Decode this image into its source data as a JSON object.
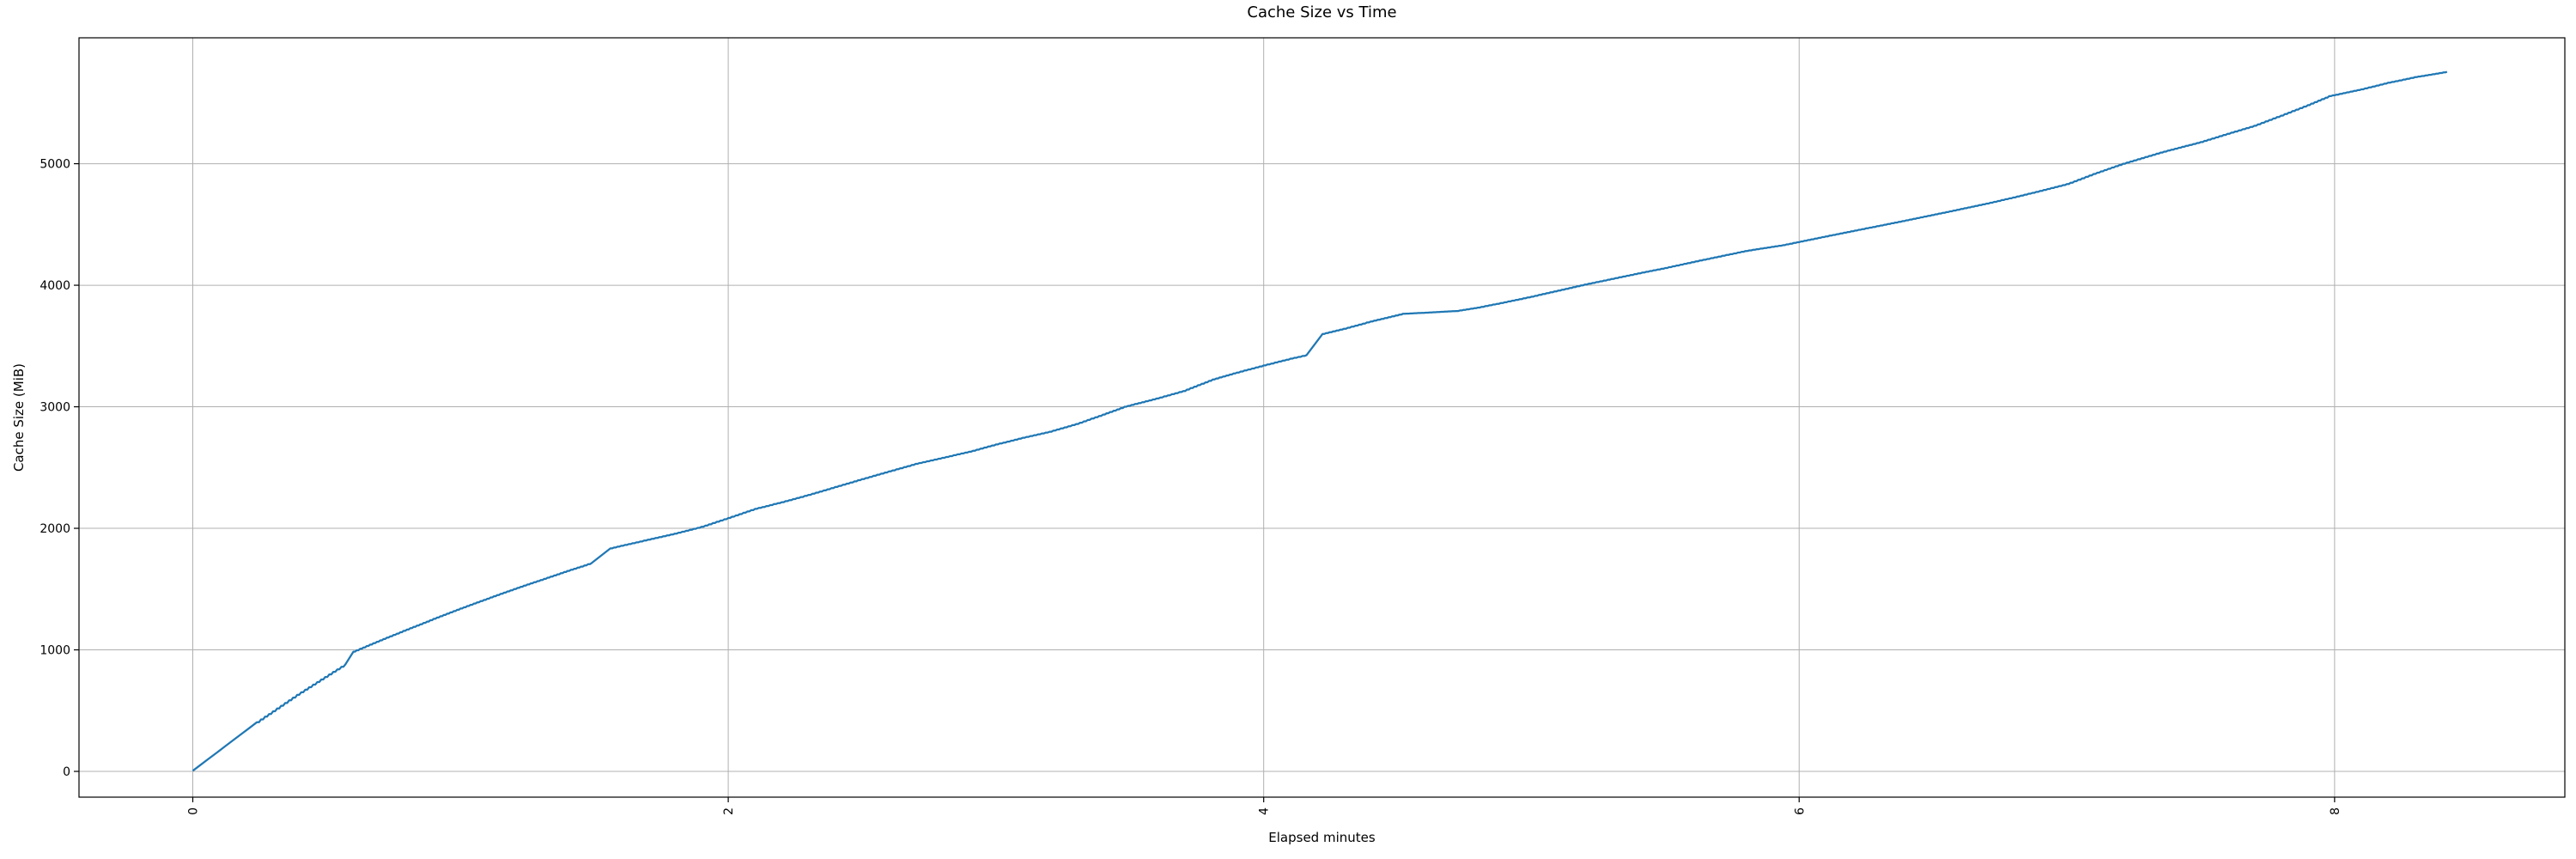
{
  "chart_data": {
    "type": "line",
    "title": "Cache Size vs Time",
    "xlabel": "Elapsed minutes",
    "ylabel": "Cache Size (MiB)",
    "xlim": [
      -0.425,
      8.86
    ],
    "ylim": [
      -212,
      6036
    ],
    "xticks": [
      0,
      2,
      4,
      6,
      8
    ],
    "xtick_labels": [
      "0",
      "2",
      "4",
      "6",
      "8"
    ],
    "xtick_rotation_deg": 90,
    "yticks": [
      0,
      1000,
      2000,
      3000,
      4000,
      5000
    ],
    "ytick_labels": [
      "0",
      "1000",
      "2000",
      "3000",
      "4000",
      "5000"
    ],
    "grid": true,
    "legend_position": "none",
    "line_color": "#1f77b4",
    "grid_color": "#b0b0b0",
    "spine_color": "#000000",
    "x_units": "minutes",
    "y_units": "MiB",
    "series": [
      {
        "name": "cache_size",
        "points": [
          [
            0.0,
            5
          ],
          [
            0.03,
            55
          ],
          [
            0.06,
            105
          ],
          [
            0.09,
            155
          ],
          [
            0.12,
            205
          ],
          [
            0.15,
            255
          ],
          [
            0.18,
            305
          ],
          [
            0.21,
            355
          ],
          [
            0.24,
            405
          ],
          [
            0.27,
            450
          ],
          [
            0.3,
            495
          ],
          [
            0.33,
            540
          ],
          [
            0.36,
            585
          ],
          [
            0.39,
            630
          ],
          [
            0.42,
            672
          ],
          [
            0.45,
            714
          ],
          [
            0.48,
            756
          ],
          [
            0.51,
            798
          ],
          [
            0.54,
            840
          ],
          [
            0.57,
            880
          ],
          [
            0.6,
            985
          ],
          [
            0.65,
            1032
          ],
          [
            0.7,
            1078
          ],
          [
            0.75,
            1123
          ],
          [
            0.8,
            1167
          ],
          [
            0.85,
            1211
          ],
          [
            0.9,
            1255
          ],
          [
            0.95,
            1298
          ],
          [
            1.0,
            1340
          ],
          [
            1.05,
            1381
          ],
          [
            1.1,
            1421
          ],
          [
            1.15,
            1461
          ],
          [
            1.2,
            1500
          ],
          [
            1.25,
            1538
          ],
          [
            1.3,
            1575
          ],
          [
            1.35,
            1612
          ],
          [
            1.4,
            1650
          ],
          [
            1.45,
            1685
          ],
          [
            1.49,
            1715
          ],
          [
            1.56,
            1835
          ],
          [
            1.6,
            1856
          ],
          [
            1.7,
            1906
          ],
          [
            1.8,
            1956
          ],
          [
            1.9,
            2012
          ],
          [
            2.0,
            2085
          ],
          [
            2.1,
            2160
          ],
          [
            2.2,
            2215
          ],
          [
            2.3,
            2275
          ],
          [
            2.4,
            2340
          ],
          [
            2.5,
            2405
          ],
          [
            2.6,
            2468
          ],
          [
            2.7,
            2530
          ],
          [
            2.8,
            2580
          ],
          [
            2.9,
            2630
          ],
          [
            3.0,
            2690
          ],
          [
            3.1,
            2745
          ],
          [
            3.2,
            2795
          ],
          [
            3.3,
            2858
          ],
          [
            3.4,
            2936
          ],
          [
            3.48,
            3000
          ],
          [
            3.6,
            3068
          ],
          [
            3.7,
            3130
          ],
          [
            3.81,
            3225
          ],
          [
            3.9,
            3282
          ],
          [
            4.0,
            3340
          ],
          [
            4.1,
            3396
          ],
          [
            4.16,
            3425
          ],
          [
            4.22,
            3600
          ],
          [
            4.3,
            3642
          ],
          [
            4.4,
            3702
          ],
          [
            4.52,
            3765
          ],
          [
            4.62,
            3776
          ],
          [
            4.72,
            3788
          ],
          [
            4.8,
            3816
          ],
          [
            4.9,
            3860
          ],
          [
            5.0,
            3906
          ],
          [
            5.1,
            3956
          ],
          [
            5.2,
            4006
          ],
          [
            5.3,
            4052
          ],
          [
            5.4,
            4098
          ],
          [
            5.5,
            4142
          ],
          [
            5.6,
            4190
          ],
          [
            5.7,
            4236
          ],
          [
            5.8,
            4282
          ],
          [
            5.94,
            4330
          ],
          [
            6.1,
            4402
          ],
          [
            6.25,
            4468
          ],
          [
            6.4,
            4534
          ],
          [
            6.55,
            4602
          ],
          [
            6.7,
            4672
          ],
          [
            6.8,
            4722
          ],
          [
            6.9,
            4776
          ],
          [
            7.0,
            4832
          ],
          [
            7.1,
            4916
          ],
          [
            7.21,
            5000
          ],
          [
            7.35,
            5092
          ],
          [
            7.5,
            5178
          ],
          [
            7.6,
            5246
          ],
          [
            7.7,
            5312
          ],
          [
            7.8,
            5396
          ],
          [
            7.9,
            5482
          ],
          [
            7.98,
            5556
          ],
          [
            8.1,
            5612
          ],
          [
            8.2,
            5666
          ],
          [
            8.3,
            5712
          ],
          [
            8.42,
            5756
          ]
        ]
      }
    ]
  }
}
